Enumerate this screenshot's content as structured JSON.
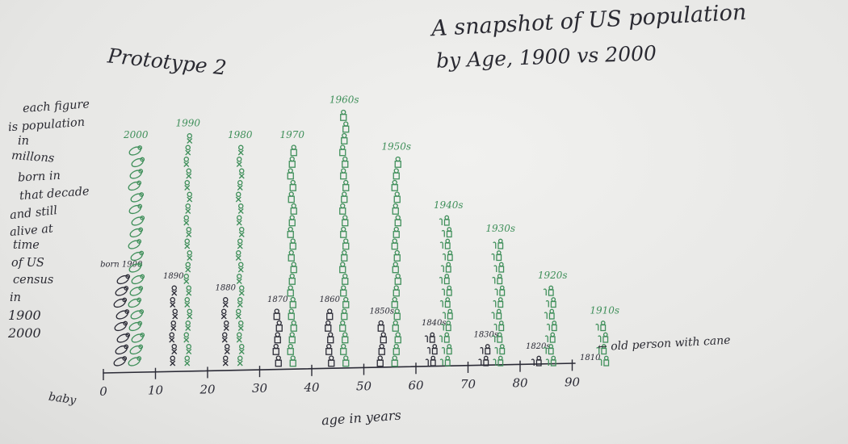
{
  "title_lines": [
    "A snapshot of US population",
    "by Age, 1900 vs 2000"
  ],
  "prototype_label": "Prototype 2",
  "description_lines": [
    "each figure",
    "is population",
    "in",
    "millons",
    "born in",
    "that decade",
    "and still",
    "alive at",
    "time",
    "of US",
    "census",
    "in",
    "1900",
    "2000"
  ],
  "baby_label": "baby",
  "annotation_old": "← old person with cane",
  "colors": {
    "ink_1900": "#2b2b36",
    "ink_2000": "#3f8f5a",
    "paper": "#ececea"
  },
  "chart_data": {
    "type": "pictograph",
    "x_label": "age in years",
    "x_ticks": [
      "0",
      "10",
      "20",
      "30",
      "40",
      "50",
      "60",
      "70",
      "80",
      "90"
    ],
    "series": [
      {
        "name": "1900",
        "color": "#2b2b36",
        "cohorts": [
          {
            "label": "born 1900",
            "age": 5,
            "count": 8
          },
          {
            "label": "1890",
            "age": 15,
            "count": 7
          },
          {
            "label": "1880",
            "age": 25,
            "count": 6
          },
          {
            "label": "1870",
            "age": 35,
            "count": 5
          },
          {
            "label": "1860",
            "age": 45,
            "count": 5
          },
          {
            "label": "1850s",
            "age": 55,
            "count": 4
          },
          {
            "label": "1840s",
            "age": 65,
            "count": 3
          },
          {
            "label": "1830s",
            "age": 75,
            "count": 2
          },
          {
            "label": "1820s",
            "age": 85,
            "count": 1
          },
          {
            "label": "1810",
            "age": 95,
            "count": 0
          }
        ]
      },
      {
        "name": "2000",
        "color": "#3f8f5a",
        "cohorts": [
          {
            "label": "2000",
            "age": 5,
            "count": 19
          },
          {
            "label": "1990",
            "age": 15,
            "count": 20
          },
          {
            "label": "1980",
            "age": 25,
            "count": 19
          },
          {
            "label": "1970",
            "age": 35,
            "count": 19
          },
          {
            "label": "1960s",
            "age": 45,
            "count": 22
          },
          {
            "label": "1950s",
            "age": 55,
            "count": 18
          },
          {
            "label": "1940s",
            "age": 65,
            "count": 13
          },
          {
            "label": "1930s",
            "age": 75,
            "count": 11
          },
          {
            "label": "1920s",
            "age": 85,
            "count": 7
          },
          {
            "label": "1910s",
            "age": 95,
            "count": 4
          }
        ]
      }
    ]
  }
}
